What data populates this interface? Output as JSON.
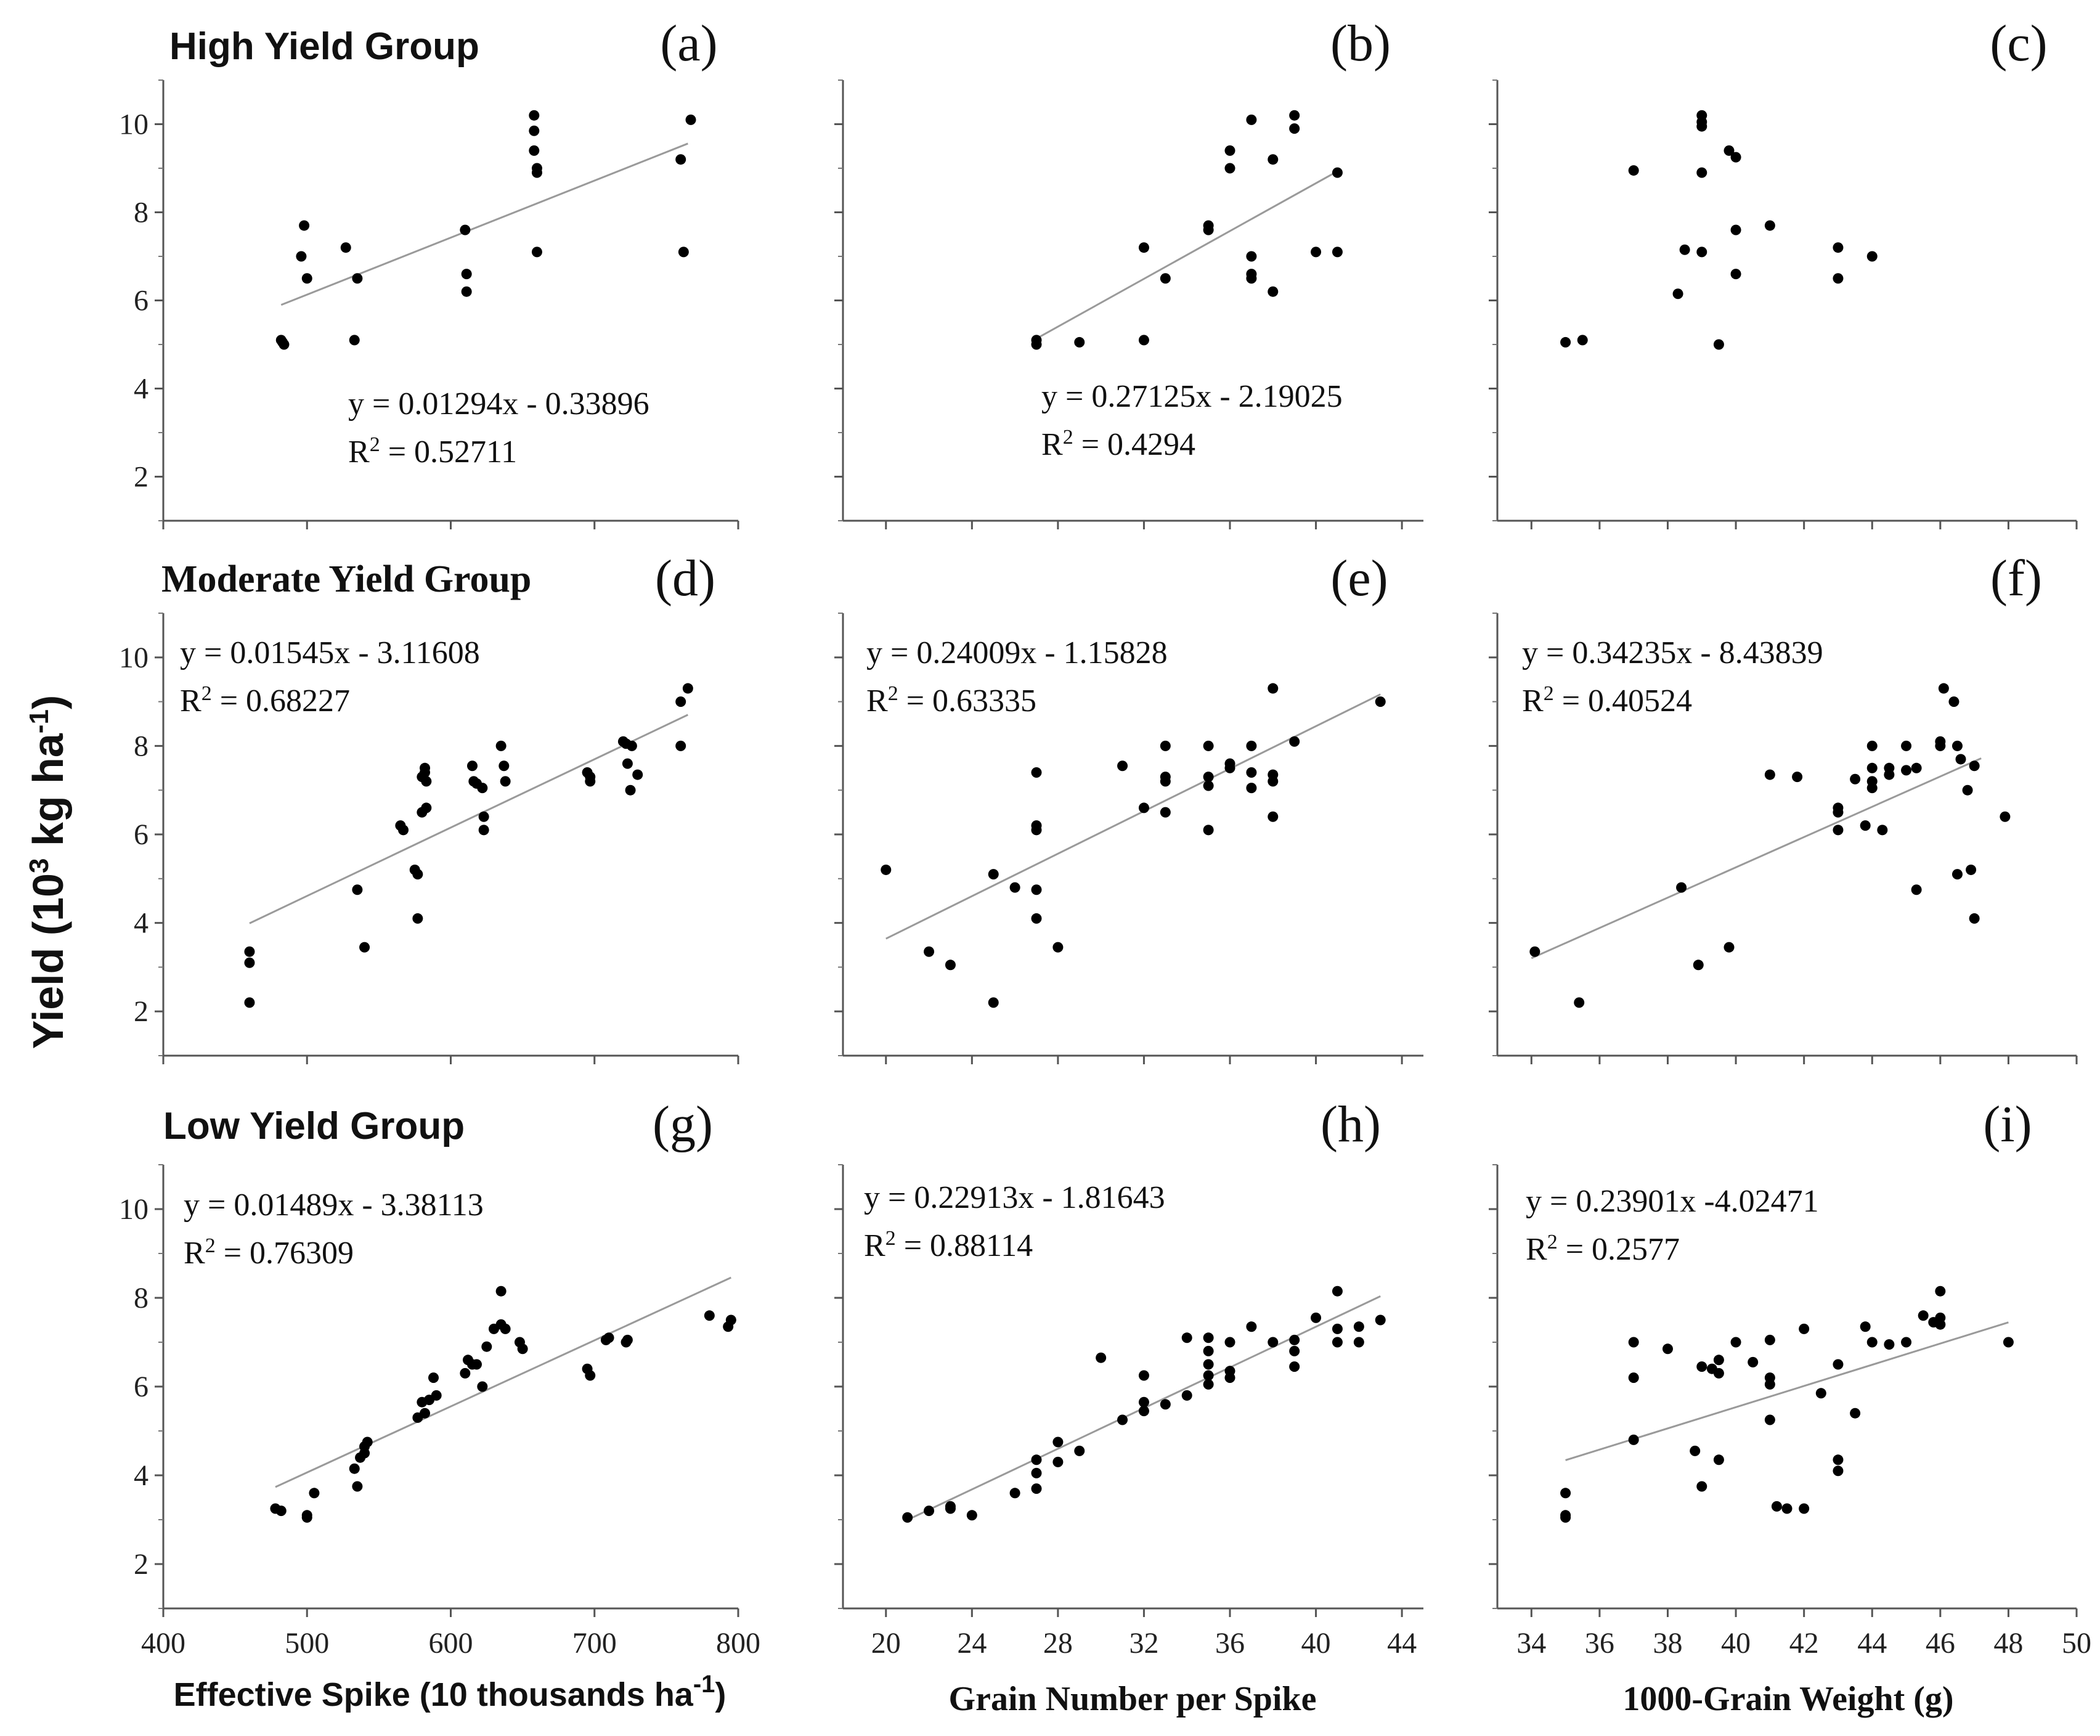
{
  "figure": {
    "ylabel": "Yield (10",
    "ylabel_sup1": "3",
    "ylabel_mid": " kg ha",
    "ylabel_sup2": "-1",
    "ylabel_end": ")",
    "group_titles": [
      "High Yield Group",
      "Moderate Yield Group",
      "Low Yield Group"
    ],
    "xlabels": [
      {
        "text": "Effective Spike (10 thousands ha",
        "sup": "-1",
        "end": ")"
      },
      {
        "text": "Grain Number per Spike",
        "sup": "",
        "end": ""
      },
      {
        "text": "1000-Grain Weight (g)",
        "sup": "",
        "end": ""
      }
    ],
    "y_ticks": [
      "2",
      "4",
      "6",
      "8",
      "10"
    ],
    "x_ticks": [
      [
        "400",
        "500",
        "600",
        "700",
        "800"
      ],
      [
        "20",
        "24",
        "28",
        "32",
        "36",
        "40",
        "44"
      ],
      [
        "34",
        "36",
        "38",
        "40",
        "42",
        "44",
        "46",
        "48",
        "50"
      ]
    ]
  },
  "chart_data": [
    {
      "panel": "(a)",
      "type": "scatter",
      "xlim": [
        400,
        800
      ],
      "ylim": [
        1,
        11
      ],
      "xlabel": "Effective Spike (10 thousands ha-1)",
      "ylabel": "Yield (10^3 kg ha-1)",
      "fit": {
        "slope": 0.01294,
        "intercept": -0.33896,
        "x_range": [
          482,
          765
        ]
      },
      "equation": "y = 0.01294x - 0.33896",
      "r2_prefix": "R",
      "r2_value": " = 0.52711",
      "x": [
        482,
        484,
        483,
        496,
        498,
        500,
        527,
        533,
        535,
        610,
        611,
        611,
        658,
        658,
        658,
        660,
        660,
        660,
        760,
        762,
        767
      ],
      "y": [
        5.1,
        5.0,
        5.05,
        7.0,
        7.7,
        6.5,
        7.2,
        5.1,
        6.5,
        7.6,
        6.6,
        6.2,
        10.2,
        9.85,
        9.4,
        9.0,
        8.9,
        7.1,
        9.2,
        7.1,
        10.1
      ]
    },
    {
      "panel": "(b)",
      "type": "scatter",
      "xlim": [
        18,
        45
      ],
      "ylim": [
        1,
        11
      ],
      "xlabel": "Grain Number per Spike",
      "ylabel": "Yield (10^3 kg ha-1)",
      "fit": {
        "slope": 0.27125,
        "intercept": -2.19025,
        "x_range": [
          27,
          41
        ]
      },
      "equation": "y = 0.27125x - 2.19025",
      "r2_prefix": "R",
      "r2_value": " = 0.4294",
      "x": [
        27,
        27,
        29,
        32,
        32,
        33,
        35,
        35,
        36,
        36,
        37,
        37,
        37,
        37,
        38,
        38,
        39,
        39,
        40,
        41,
        41
      ],
      "y": [
        5.1,
        5.0,
        5.05,
        5.1,
        7.2,
        6.5,
        7.6,
        7.7,
        9.4,
        9.0,
        10.1,
        7.0,
        6.6,
        6.5,
        9.2,
        6.2,
        10.2,
        9.9,
        7.1,
        7.1,
        8.9
      ],
      "fit_note": "fitted line drawn as in the original"
    },
    {
      "panel": "(c)",
      "type": "scatter",
      "xlim": [
        33,
        50
      ],
      "ylim": [
        1,
        11
      ],
      "xlabel": "1000-Grain Weight (g)",
      "ylabel": "Yield (10^3 kg ha-1)",
      "fit": null,
      "equation": "",
      "r2_prefix": "",
      "r2_value": "",
      "x": [
        35.0,
        35.5,
        37.0,
        38.3,
        38.5,
        39.0,
        39.0,
        39.0,
        39.0,
        39.0,
        39.5,
        39.8,
        40.0,
        40.0,
        40.0,
        41.0,
        43.0,
        43.0,
        44.0
      ],
      "y": [
        5.05,
        5.1,
        8.95,
        6.15,
        7.15,
        10.2,
        10.05,
        9.95,
        8.9,
        7.1,
        5.0,
        9.4,
        9.25,
        7.6,
        6.6,
        7.7,
        7.2,
        6.5,
        7.0
      ]
    },
    {
      "panel": "(d)",
      "type": "scatter",
      "xlim": [
        400,
        800
      ],
      "ylim": [
        1,
        11
      ],
      "xlabel": "Effective Spike (10 thousands ha-1)",
      "ylabel": "Yield (10^3 kg ha-1)",
      "fit": {
        "slope": 0.01545,
        "intercept": -3.11608,
        "x_range": [
          460,
          765
        ]
      },
      "equation": "y = 0.01545x - 3.11608",
      "r2_prefix": "R",
      "r2_value": " = 0.68227",
      "x": [
        460,
        460,
        460,
        535,
        540,
        565,
        567,
        575,
        577,
        577,
        580,
        580,
        582,
        582,
        583,
        583,
        615,
        616,
        618,
        622,
        623,
        623,
        635,
        637,
        638,
        695,
        697,
        697,
        720,
        722,
        723,
        725,
        726,
        730,
        760,
        760,
        765
      ],
      "y": [
        3.35,
        3.1,
        2.2,
        4.75,
        3.45,
        6.2,
        6.1,
        5.2,
        5.1,
        4.1,
        6.5,
        7.3,
        7.5,
        7.4,
        7.2,
        6.6,
        7.55,
        7.2,
        7.15,
        7.05,
        6.4,
        6.1,
        8.0,
        7.55,
        7.2,
        7.4,
        7.3,
        7.2,
        8.1,
        8.05,
        7.6,
        7.0,
        8.0,
        7.35,
        9.0,
        8.0,
        9.3
      ]
    },
    {
      "panel": "(e)",
      "type": "scatter",
      "xlim": [
        18,
        45
      ],
      "ylim": [
        1,
        11
      ],
      "xlabel": "Grain Number per Spike",
      "ylabel": "Yield (10^3 kg ha-1)",
      "fit": {
        "slope": 0.24009,
        "intercept": -1.15828,
        "x_range": [
          20,
          43
        ]
      },
      "equation": "y = 0.24009x - 1.15828",
      "r2_prefix": "R",
      "r2_value": " = 0.63335",
      "x": [
        20,
        22,
        23,
        25,
        25,
        26,
        27,
        27,
        27,
        27,
        27,
        28,
        31,
        32,
        33,
        33,
        33,
        33,
        35,
        35,
        35,
        35,
        36,
        36,
        37,
        37,
        37,
        38,
        38,
        38,
        38,
        39,
        43
      ],
      "y": [
        5.2,
        3.35,
        3.05,
        5.1,
        2.2,
        4.8,
        7.4,
        6.2,
        6.1,
        4.75,
        4.1,
        3.45,
        7.55,
        6.6,
        8.0,
        7.3,
        7.2,
        6.5,
        8.0,
        7.3,
        7.1,
        6.1,
        7.6,
        7.5,
        8.0,
        7.4,
        7.05,
        9.3,
        7.35,
        7.2,
        6.4,
        8.1,
        9.0
      ]
    },
    {
      "panel": "(f)",
      "type": "scatter",
      "xlim": [
        33,
        50
      ],
      "ylim": [
        1,
        11
      ],
      "xlabel": "1000-Grain Weight (g)",
      "ylabel": "Yield (10^3 kg ha-1)",
      "fit": {
        "slope": 0.34235,
        "intercept": -8.43839,
        "x_range": [
          34,
          47.2
        ]
      },
      "equation": "y = 0.34235x - 8.43839",
      "r2_prefix": "R",
      "r2_value": " = 0.40524",
      "x": [
        34.1,
        35.4,
        38.4,
        38.9,
        39.8,
        41.0,
        41.8,
        43.0,
        43.0,
        43.0,
        43.5,
        43.8,
        44.0,
        44.0,
        44.0,
        44.0,
        44.3,
        44.5,
        44.5,
        45.0,
        45.0,
        45.3,
        45.3,
        46.0,
        46.0,
        46.1,
        46.4,
        46.5,
        46.5,
        46.6,
        46.8,
        46.9,
        47.0,
        47.0,
        47.9
      ],
      "y": [
        3.35,
        2.2,
        4.8,
        3.05,
        3.45,
        7.35,
        7.3,
        6.6,
        6.5,
        6.1,
        7.25,
        6.2,
        8.0,
        7.5,
        7.2,
        7.05,
        6.1,
        7.5,
        7.35,
        8.0,
        7.45,
        7.5,
        4.75,
        8.1,
        8.0,
        9.3,
        9.0,
        8.0,
        5.1,
        7.7,
        7.0,
        5.2,
        7.55,
        4.1,
        6.4
      ]
    },
    {
      "panel": "(g)",
      "type": "scatter",
      "xlim": [
        400,
        800
      ],
      "ylim": [
        1,
        11
      ],
      "xlabel": "Effective Spike (10 thousands ha-1)",
      "ylabel": "Yield (10^3 kg ha-1)",
      "fit": {
        "slope": 0.01489,
        "intercept": -3.38113,
        "x_range": [
          478,
          795
        ]
      },
      "equation": "y = 0.01489x - 3.38113",
      "r2_prefix": "R",
      "r2_value": " = 0.76309",
      "x": [
        478,
        482,
        500,
        500,
        505,
        533,
        535,
        537,
        540,
        540,
        542,
        577,
        580,
        582,
        585,
        588,
        590,
        610,
        612,
        615,
        618,
        622,
        625,
        630,
        635,
        635,
        638,
        648,
        650,
        695,
        697,
        708,
        710,
        722,
        723,
        780,
        793,
        795
      ],
      "y": [
        3.25,
        3.2,
        3.1,
        3.05,
        3.6,
        4.15,
        3.75,
        4.4,
        4.5,
        4.65,
        4.75,
        5.3,
        5.65,
        5.4,
        5.7,
        6.2,
        5.8,
        6.3,
        6.6,
        6.5,
        6.5,
        6.0,
        6.9,
        7.3,
        8.15,
        7.4,
        7.3,
        7.0,
        6.85,
        6.4,
        6.25,
        7.05,
        7.1,
        7.0,
        7.05,
        7.6,
        7.35,
        7.5
      ],
      "x_ticks_note": "x axis ticks as drawn"
    },
    {
      "panel": "(h)",
      "type": "scatter",
      "xlim": [
        18,
        45
      ],
      "ylim": [
        1,
        11
      ],
      "xlabel": "Grain Number per Spike",
      "ylabel": "Yield (10^3 kg ha-1)",
      "fit": {
        "slope": 0.22913,
        "intercept": -1.81643,
        "x_range": [
          21,
          43
        ]
      },
      "equation": "y = 0.22913x - 1.81643",
      "r2_prefix": "R",
      "r2_value": " = 0.88114",
      "x": [
        21,
        22,
        23,
        23,
        24,
        26,
        27,
        27,
        27,
        28,
        28,
        29,
        30,
        31,
        32,
        32,
        32,
        33,
        34,
        34,
        35,
        35,
        35,
        35,
        35,
        36,
        36,
        36,
        37,
        38,
        39,
        39,
        39,
        40,
        41,
        41,
        41,
        42,
        42,
        43
      ],
      "y": [
        3.05,
        3.2,
        3.25,
        3.3,
        3.1,
        3.6,
        4.35,
        4.05,
        3.7,
        4.75,
        4.3,
        4.55,
        6.65,
        5.25,
        5.65,
        5.45,
        6.25,
        5.6,
        7.1,
        5.8,
        7.1,
        6.8,
        6.5,
        6.25,
        6.05,
        7.0,
        6.35,
        6.2,
        7.35,
        7.0,
        7.05,
        6.8,
        6.45,
        7.55,
        8.15,
        7.3,
        7.0,
        7.35,
        7.0,
        7.5
      ]
    },
    {
      "panel": "(i)",
      "type": "scatter",
      "xlim": [
        33,
        50
      ],
      "ylim": [
        1,
        11
      ],
      "xlabel": "1000-Grain Weight (g)",
      "ylabel": "Yield (10^3 kg ha-1)",
      "fit": {
        "slope": 0.23901,
        "intercept": -4.02471,
        "x_range": [
          35,
          48
        ]
      },
      "equation": "y = 0.23901x -4.02471",
      "r2_prefix": "R",
      "r2_value": " = 0.2577",
      "x": [
        35,
        35,
        35,
        37,
        37,
        37,
        38,
        38.8,
        39,
        39,
        39.3,
        39.5,
        39.5,
        39.5,
        40,
        40.5,
        41,
        41,
        41,
        41,
        41.2,
        41.5,
        42,
        42,
        42.5,
        43,
        43,
        43,
        43.5,
        43.8,
        44,
        44.5,
        45,
        45.5,
        45.8,
        46,
        46,
        46,
        48
      ],
      "y": [
        3.6,
        3.1,
        3.05,
        7.0,
        6.2,
        4.8,
        6.85,
        4.55,
        6.45,
        3.75,
        6.4,
        6.6,
        6.3,
        4.35,
        7.0,
        6.55,
        7.05,
        6.2,
        6.05,
        5.25,
        3.3,
        3.25,
        7.3,
        3.25,
        5.85,
        6.5,
        4.35,
        4.1,
        5.4,
        7.35,
        7.0,
        6.95,
        7.0,
        7.6,
        7.45,
        8.15,
        7.55,
        7.4,
        7.0
      ]
    }
  ]
}
